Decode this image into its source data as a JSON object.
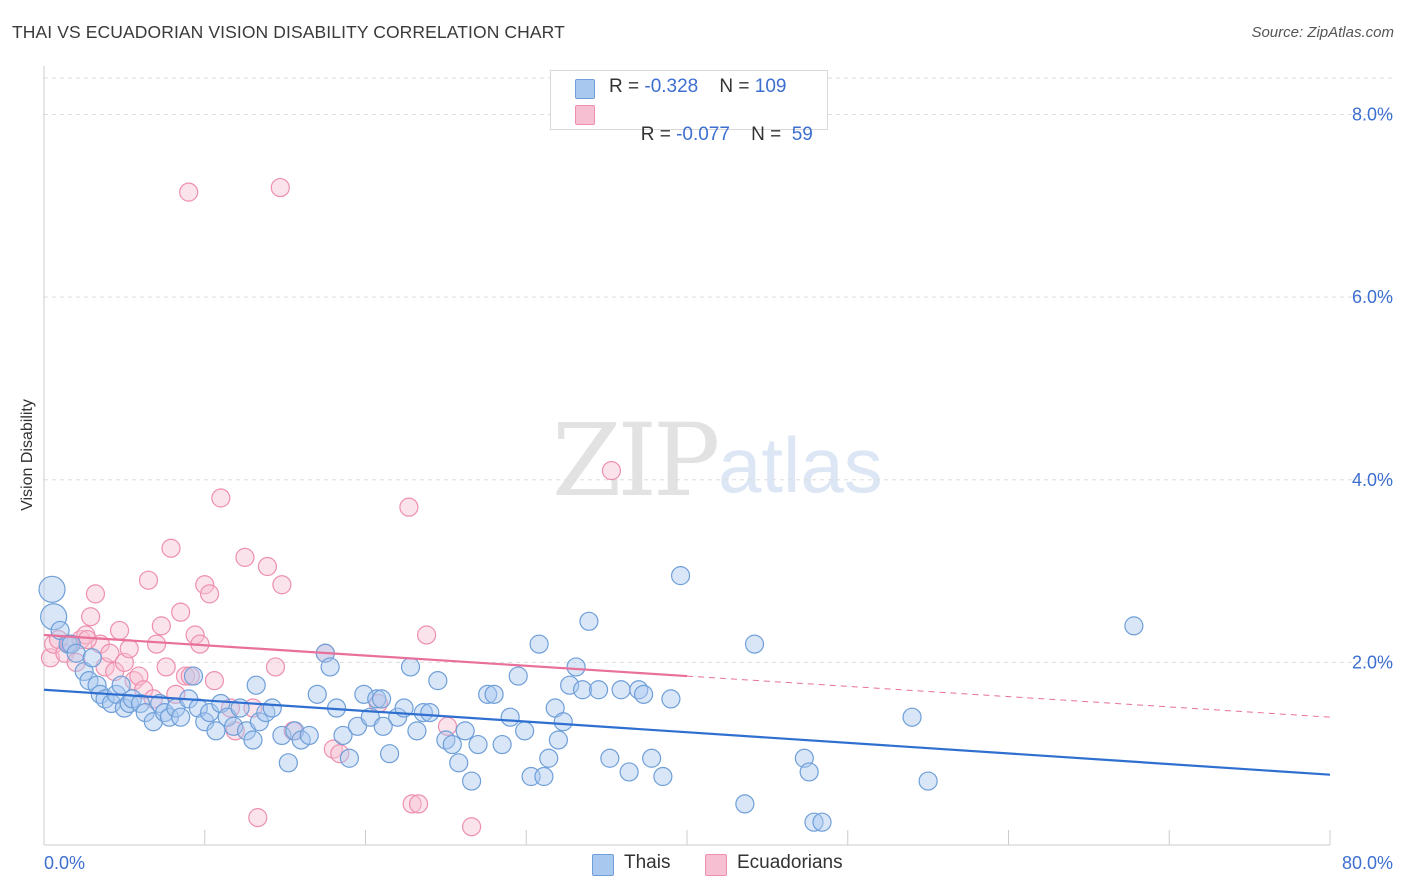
{
  "title": "THAI VS ECUADORIAN VISION DISABILITY CORRELATION CHART",
  "source": "Source: ZipAtlas.com",
  "watermark": {
    "zip": "ZIP",
    "atlas": "atlas"
  },
  "colors": {
    "thai_fill": "#a8c8f0",
    "thai_stroke": "#6f9fd8",
    "thai_line": "#2f6fd0",
    "ecu_fill": "#f7c0d2",
    "ecu_stroke": "#ee8fae",
    "ecu_line": "#e8709a",
    "axis_label": "#3d6fd0",
    "grid": "#dddddd"
  },
  "legend": {
    "rows": [
      {
        "r_label": "R = ",
        "r_value": "-0.328",
        "n_label": "N = ",
        "n_value": "109"
      },
      {
        "r_label": "R = ",
        "r_value": "-0.077",
        "n_label": "N = ",
        "n_value": " 59"
      }
    ]
  },
  "chart_data": {
    "type": "scatter",
    "xlabel": "",
    "ylabel": "Vision Disability",
    "xlim": [
      0,
      80
    ],
    "ylim": [
      0,
      8.0
    ],
    "x_tick_labels": {
      "left": "0.0%",
      "right": "80.0%"
    },
    "y_ticks": [
      {
        "value": 2.0,
        "label": "2.0%"
      },
      {
        "value": 4.0,
        "label": "4.0%"
      },
      {
        "value": 6.0,
        "label": "6.0%"
      },
      {
        "value": 8.0,
        "label": "8.0%"
      }
    ],
    "grid": true,
    "series": [
      {
        "name": "Thais",
        "r": -0.328,
        "n": 109,
        "trend": {
          "x0": 0,
          "y0": 1.7,
          "x1": 80,
          "y1": 0.77
        },
        "points": [
          [
            0.5,
            2.8
          ],
          [
            0.6,
            2.5
          ],
          [
            1.0,
            2.35
          ],
          [
            1.5,
            2.2
          ],
          [
            1.7,
            2.2
          ],
          [
            2.0,
            2.1
          ],
          [
            2.5,
            1.9
          ],
          [
            2.8,
            1.8
          ],
          [
            3.0,
            2.05
          ],
          [
            3.3,
            1.75
          ],
          [
            3.5,
            1.65
          ],
          [
            3.8,
            1.6
          ],
          [
            4.2,
            1.55
          ],
          [
            4.5,
            1.65
          ],
          [
            4.8,
            1.75
          ],
          [
            5.0,
            1.5
          ],
          [
            5.3,
            1.55
          ],
          [
            5.5,
            1.6
          ],
          [
            6.0,
            1.55
          ],
          [
            6.3,
            1.45
          ],
          [
            6.8,
            1.35
          ],
          [
            7.2,
            1.55
          ],
          [
            7.5,
            1.45
          ],
          [
            7.8,
            1.4
          ],
          [
            8.2,
            1.5
          ],
          [
            8.5,
            1.4
          ],
          [
            9.0,
            1.6
          ],
          [
            9.3,
            1.85
          ],
          [
            9.6,
            1.5
          ],
          [
            10.0,
            1.35
          ],
          [
            10.3,
            1.45
          ],
          [
            10.7,
            1.25
          ],
          [
            11.0,
            1.55
          ],
          [
            11.4,
            1.4
          ],
          [
            11.8,
            1.3
          ],
          [
            12.2,
            1.5
          ],
          [
            12.6,
            1.25
          ],
          [
            13.0,
            1.15
          ],
          [
            13.4,
            1.35
          ],
          [
            13.8,
            1.45
          ],
          [
            14.2,
            1.5
          ],
          [
            14.8,
            1.2
          ],
          [
            15.2,
            0.9
          ],
          [
            15.6,
            1.25
          ],
          [
            16.0,
            1.15
          ],
          [
            16.5,
            1.2
          ],
          [
            17.0,
            1.65
          ],
          [
            17.5,
            2.1
          ],
          [
            17.8,
            1.95
          ],
          [
            18.2,
            1.5
          ],
          [
            18.6,
            1.2
          ],
          [
            19.0,
            0.95
          ],
          [
            19.5,
            1.3
          ],
          [
            19.9,
            1.65
          ],
          [
            20.3,
            1.4
          ],
          [
            20.7,
            1.6
          ],
          [
            21.1,
            1.3
          ],
          [
            21.5,
            1.0
          ],
          [
            22.0,
            1.4
          ],
          [
            22.4,
            1.5
          ],
          [
            22.8,
            1.95
          ],
          [
            23.2,
            1.25
          ],
          [
            23.6,
            1.45
          ],
          [
            24.0,
            1.45
          ],
          [
            24.5,
            1.8
          ],
          [
            25.0,
            1.15
          ],
          [
            25.4,
            1.1
          ],
          [
            25.8,
            0.9
          ],
          [
            26.2,
            1.25
          ],
          [
            26.6,
            0.7
          ],
          [
            27.0,
            1.1
          ],
          [
            27.6,
            1.65
          ],
          [
            28.0,
            1.65
          ],
          [
            28.5,
            1.1
          ],
          [
            29.0,
            1.4
          ],
          [
            29.5,
            1.85
          ],
          [
            29.9,
            1.25
          ],
          [
            30.3,
            0.75
          ],
          [
            30.8,
            2.2
          ],
          [
            31.1,
            0.75
          ],
          [
            31.4,
            0.95
          ],
          [
            31.8,
            1.5
          ],
          [
            32.3,
            1.35
          ],
          [
            32.7,
            1.75
          ],
          [
            33.1,
            1.95
          ],
          [
            33.5,
            1.7
          ],
          [
            33.9,
            2.45
          ],
          [
            34.5,
            1.7
          ],
          [
            35.2,
            0.95
          ],
          [
            35.9,
            1.7
          ],
          [
            36.4,
            0.8
          ],
          [
            37.0,
            1.7
          ],
          [
            37.3,
            1.65
          ],
          [
            37.8,
            0.95
          ],
          [
            38.5,
            0.75
          ],
          [
            39.0,
            1.6
          ],
          [
            39.6,
            2.95
          ],
          [
            43.6,
            0.45
          ],
          [
            44.2,
            2.2
          ],
          [
            47.3,
            0.95
          ],
          [
            47.6,
            0.8
          ],
          [
            47.9,
            0.25
          ],
          [
            48.4,
            0.25
          ],
          [
            54.0,
            1.4
          ],
          [
            55.0,
            0.7
          ],
          [
            67.8,
            2.4
          ],
          [
            13.2,
            1.75
          ],
          [
            21.0,
            1.6
          ],
          [
            32.0,
            1.15
          ]
        ]
      },
      {
        "name": "Ecuadorians",
        "r": -0.077,
        "n": 59,
        "trend": {
          "x0": 0,
          "y0": 2.3,
          "x1": 40,
          "y1": 1.85,
          "dash_x1": 80,
          "dash_y1": 1.4
        },
        "points": [
          [
            0.4,
            2.05
          ],
          [
            0.6,
            2.2
          ],
          [
            0.9,
            2.25
          ],
          [
            1.3,
            2.1
          ],
          [
            1.6,
            2.2
          ],
          [
            2.0,
            2.0
          ],
          [
            2.3,
            2.25
          ],
          [
            2.6,
            2.3
          ],
          [
            2.9,
            2.5
          ],
          [
            3.2,
            2.75
          ],
          [
            3.5,
            2.2
          ],
          [
            3.8,
            1.95
          ],
          [
            4.1,
            2.1
          ],
          [
            4.4,
            1.9
          ],
          [
            4.7,
            2.35
          ],
          [
            5.0,
            2.0
          ],
          [
            5.3,
            2.15
          ],
          [
            5.6,
            1.8
          ],
          [
            5.9,
            1.85
          ],
          [
            6.2,
            1.7
          ],
          [
            6.5,
            2.9
          ],
          [
            6.8,
            1.6
          ],
          [
            7.0,
            2.2
          ],
          [
            7.3,
            2.4
          ],
          [
            7.6,
            1.95
          ],
          [
            7.9,
            3.25
          ],
          [
            8.2,
            1.65
          ],
          [
            8.5,
            2.55
          ],
          [
            8.8,
            1.85
          ],
          [
            9.1,
            1.85
          ],
          [
            9.4,
            2.3
          ],
          [
            9.7,
            2.2
          ],
          [
            10.0,
            2.85
          ],
          [
            10.3,
            2.75
          ],
          [
            10.6,
            1.8
          ],
          [
            11.0,
            3.8
          ],
          [
            11.6,
            1.5
          ],
          [
            11.9,
            1.25
          ],
          [
            12.5,
            3.15
          ],
          [
            13.0,
            1.5
          ],
          [
            13.3,
            0.3
          ],
          [
            13.9,
            3.05
          ],
          [
            14.4,
            1.95
          ],
          [
            14.8,
            2.85
          ],
          [
            15.5,
            1.25
          ],
          [
            17.5,
            2.1
          ],
          [
            18.0,
            1.05
          ],
          [
            18.4,
            1.0
          ],
          [
            20.8,
            1.55
          ],
          [
            22.7,
            3.7
          ],
          [
            22.9,
            0.45
          ],
          [
            23.3,
            0.45
          ],
          [
            23.8,
            2.3
          ],
          [
            25.1,
            1.3
          ],
          [
            26.6,
            0.2
          ],
          [
            9.0,
            7.15
          ],
          [
            14.7,
            7.2
          ],
          [
            35.3,
            4.1
          ],
          [
            2.7,
            2.25
          ]
        ]
      }
    ]
  }
}
